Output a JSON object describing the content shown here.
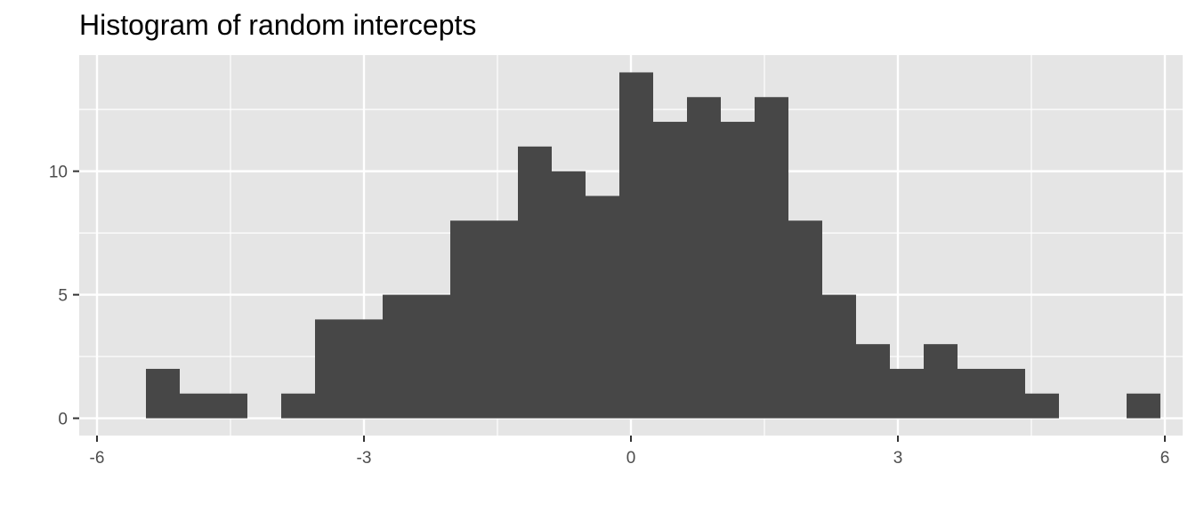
{
  "chart_data": {
    "type": "bar",
    "title": "Histogram of random intercepts",
    "xlabel": "",
    "ylabel": "",
    "bin_edges": [
      -5.45,
      -5.07,
      -4.69,
      -4.31,
      -3.93,
      -3.55,
      -3.17,
      -2.79,
      -2.41,
      -2.03,
      -1.65,
      -1.27,
      -0.89,
      -0.51,
      -0.13,
      0.25,
      0.63,
      1.01,
      1.39,
      1.77,
      2.15,
      2.53,
      2.91,
      3.29,
      3.67,
      4.05,
      4.43,
      4.81,
      5.19,
      5.57,
      5.95
    ],
    "counts": [
      2,
      1,
      1,
      0,
      1,
      4,
      4,
      5,
      5,
      8,
      8,
      11,
      10,
      9,
      14,
      12,
      13,
      12,
      13,
      8,
      5,
      3,
      2,
      3,
      2,
      2,
      1,
      0,
      0,
      1
    ],
    "xlim": [
      -6.2,
      6.2
    ],
    "ylim": [
      -0.7,
      14.7
    ],
    "x_ticks": [
      -6,
      -3,
      0,
      3,
      6
    ],
    "x_tick_labels": [
      "-6",
      "-3",
      "0",
      "3",
      "6"
    ],
    "y_ticks": [
      0,
      5,
      10
    ],
    "y_tick_labels": [
      "0",
      "5",
      "10"
    ],
    "grid": true,
    "colors": {
      "panel": "#e5e5e5",
      "grid": "#ffffff",
      "bar": "#474747",
      "tick": "#333333",
      "tick_label": "#4d4d4d"
    }
  }
}
